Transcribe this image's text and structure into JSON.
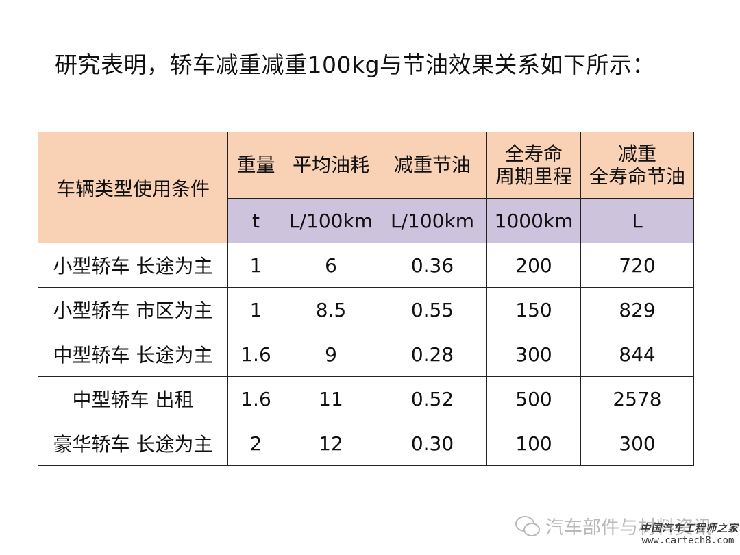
{
  "title": "研究表明，轿车减重减重100kg与节油效果关系如下所示：",
  "table": {
    "category_header": "车辆类型使用条件",
    "headers": [
      {
        "line1": "重量",
        "line2": ""
      },
      {
        "line1": "平均油耗",
        "line2": ""
      },
      {
        "line1": "减重节油",
        "line2": ""
      },
      {
        "line1": "全寿命",
        "line2": "周期里程"
      },
      {
        "line1": "减重",
        "line2": "全寿命节油"
      }
    ],
    "units": [
      "t",
      "L/100km",
      "L/100km",
      "1000km",
      "L"
    ],
    "rows": [
      {
        "name": "小型轿车  长途为主",
        "values": [
          "1",
          "6",
          "0.36",
          "200",
          "720"
        ]
      },
      {
        "name": "小型轿车  市区为主",
        "values": [
          "1",
          "8.5",
          "0.55",
          "150",
          "829"
        ]
      },
      {
        "name": "中型轿车  长途为主",
        "values": [
          "1.6",
          "9",
          "0.28",
          "300",
          "844"
        ]
      },
      {
        "name": "中型轿车  出租",
        "values": [
          "1.6",
          "11",
          "0.52",
          "500",
          "2578"
        ]
      },
      {
        "name": "豪华轿车  长途为主",
        "values": [
          "2",
          "12",
          "0.30",
          "100",
          "300"
        ]
      }
    ]
  },
  "watermark": {
    "icon": "wechat-icon",
    "text": "汽车部件与材料资讯"
  },
  "site_logo": {
    "name": "中国汽车工程师之家",
    "url": "www.cartech8.com"
  }
}
